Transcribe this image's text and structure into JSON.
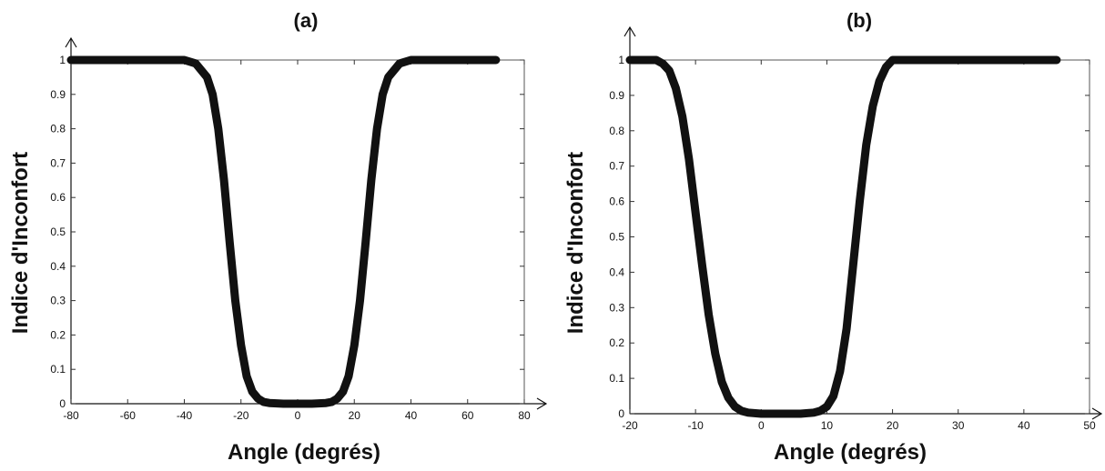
{
  "chart_data": [
    {
      "type": "line",
      "title": "(a)",
      "xlabel": "Angle (degrés)",
      "ylabel": "Indice d'Inconfort",
      "xlim": [
        -80,
        80
      ],
      "ylim": [
        0,
        1
      ],
      "x_ticks": [
        -80,
        -60,
        -40,
        -20,
        0,
        20,
        40,
        60,
        80
      ],
      "y_ticks": [
        0,
        0.1,
        0.2,
        0.3,
        0.4,
        0.5,
        0.6,
        0.7,
        0.8,
        0.9,
        1
      ],
      "grid": false,
      "line_color": "#111111",
      "series": [
        {
          "x": [
            -80,
            -60,
            -40,
            -36,
            -32,
            -30,
            -28,
            -26,
            -24,
            -22,
            -20,
            -18,
            -16,
            -14,
            -12,
            -10,
            -5,
            0,
            5,
            10,
            12,
            14,
            16,
            18,
            20,
            22,
            24,
            26,
            28,
            30,
            32,
            36,
            40,
            50,
            60,
            70
          ],
          "y": [
            1,
            1,
            1,
            0.99,
            0.95,
            0.9,
            0.8,
            0.65,
            0.47,
            0.3,
            0.17,
            0.08,
            0.035,
            0.015,
            0.005,
            0.002,
            0,
            0,
            0,
            0.002,
            0.005,
            0.015,
            0.035,
            0.08,
            0.17,
            0.3,
            0.47,
            0.65,
            0.8,
            0.9,
            0.95,
            0.99,
            1,
            1,
            1,
            1
          ]
        }
      ]
    },
    {
      "type": "line",
      "title": "(b)",
      "xlabel": "Angle (degrés)",
      "ylabel": "Indice d'Inconfort",
      "xlim": [
        -20,
        50
      ],
      "ylim": [
        0,
        1
      ],
      "x_ticks": [
        -20,
        -10,
        0,
        10,
        20,
        30,
        40,
        50
      ],
      "y_ticks": [
        0,
        0.1,
        0.2,
        0.3,
        0.4,
        0.5,
        0.6,
        0.7,
        0.8,
        0.9,
        1
      ],
      "grid": false,
      "line_color": "#111111",
      "series": [
        {
          "x": [
            -20,
            -16,
            -15,
            -14,
            -13,
            -12,
            -11,
            -10,
            -9,
            -8,
            -7,
            -6,
            -5,
            -4,
            -3,
            -2,
            0,
            2,
            4,
            6,
            8,
            9,
            10,
            11,
            12,
            13,
            14,
            15,
            16,
            17,
            18,
            19,
            20,
            22,
            30,
            40,
            45
          ],
          "y": [
            1,
            1,
            0.99,
            0.97,
            0.92,
            0.84,
            0.72,
            0.57,
            0.42,
            0.28,
            0.17,
            0.09,
            0.045,
            0.02,
            0.008,
            0.003,
            0,
            0,
            0,
            0,
            0.003,
            0.008,
            0.02,
            0.05,
            0.12,
            0.24,
            0.42,
            0.6,
            0.76,
            0.87,
            0.94,
            0.98,
            1,
            1,
            1,
            1,
            1
          ]
        }
      ]
    }
  ]
}
